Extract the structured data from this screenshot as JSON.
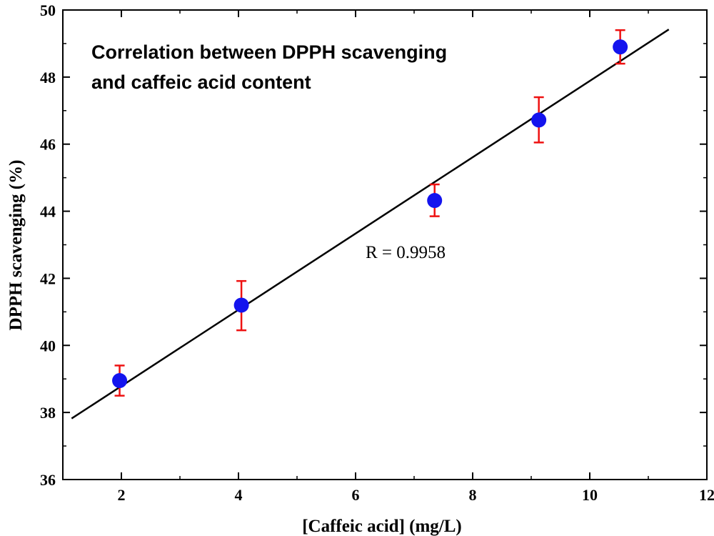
{
  "chart_data": {
    "type": "scatter",
    "title_lines": [
      "Correlation between DPPH scavenging",
      "and caffeic acid content"
    ],
    "xlabel": "[Caffeic acid] (mg/L)",
    "ylabel": "DPPH scavenging (%)",
    "xlim": [
      1,
      12
    ],
    "ylim": [
      36,
      50
    ],
    "xticks": [
      2,
      4,
      6,
      8,
      10,
      12
    ],
    "yticks": [
      36,
      38,
      40,
      42,
      44,
      46,
      48,
      50
    ],
    "grid": false,
    "points": [
      {
        "x": 1.97,
        "y": 38.95,
        "err_low": 38.5,
        "err_high": 39.4
      },
      {
        "x": 4.05,
        "y": 41.2,
        "err_low": 40.45,
        "err_high": 41.92
      },
      {
        "x": 7.35,
        "y": 44.32,
        "err_low": 43.85,
        "err_high": 44.8
      },
      {
        "x": 9.13,
        "y": 46.72,
        "err_low": 46.05,
        "err_high": 47.4
      },
      {
        "x": 10.52,
        "y": 48.9,
        "err_low": 48.4,
        "err_high": 49.4
      }
    ],
    "fit_line": {
      "x": [
        1.15,
        11.35
      ],
      "y": [
        37.82,
        49.42
      ]
    },
    "annotation": "R = 0.9958",
    "colors": {
      "marker": "#1414ee",
      "error_bar": "#ee1111",
      "line": "#000000"
    }
  }
}
